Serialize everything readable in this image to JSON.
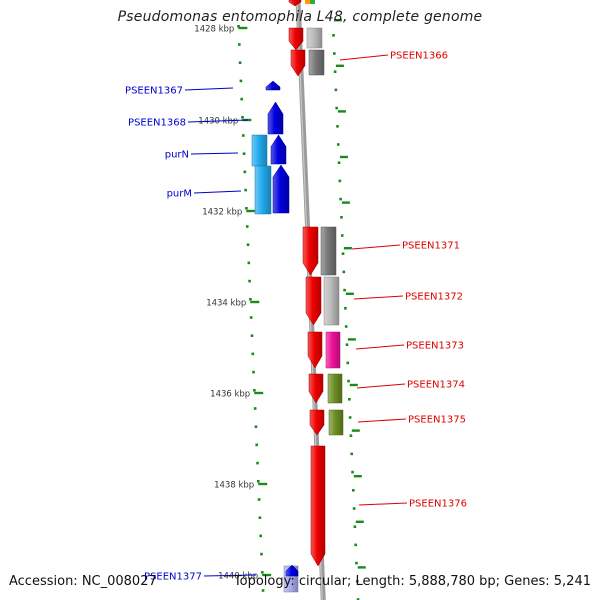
{
  "title": "Pseudomonas entomophila L48, complete genome",
  "footer": {
    "accession": "Accession: NC_008027",
    "summary": "Topology: circular; Length: 5,888,780 bp; Genes: 5,241"
  },
  "colors": {
    "backbone": "#999999",
    "ruler_tick": "#1a8a1a",
    "label_forward": "#0000cc",
    "label_reverse": "#dd0000",
    "gene_blue": "#0000dd",
    "gene_cyan": "#22aaee",
    "gene_red": "#ee0000",
    "gene_gray": "#777777",
    "gene_lightgray": "#bbbbbb",
    "gene_pink": "#ee1199",
    "gene_olive": "#6b8e23",
    "gene_lavender": "#aaaaee",
    "gene_orange": "#ff9900"
  },
  "ruler": {
    "ticks": [
      "1428 kbp",
      "1430 kbp",
      "1432 kbp",
      "1434 kbp",
      "1436 kbp",
      "1438 kbp",
      "1440 kbp"
    ]
  },
  "gene_labels": {
    "forward": [
      "PSEEN1367",
      "PSEEN1368",
      "purN",
      "purM",
      "PSEEN1377"
    ],
    "reverse": [
      "PSEEN1366",
      "PSEEN1371",
      "PSEEN1372",
      "PSEEN1373",
      "PSEEN1374",
      "PSEEN1375",
      "PSEEN1376"
    ]
  }
}
